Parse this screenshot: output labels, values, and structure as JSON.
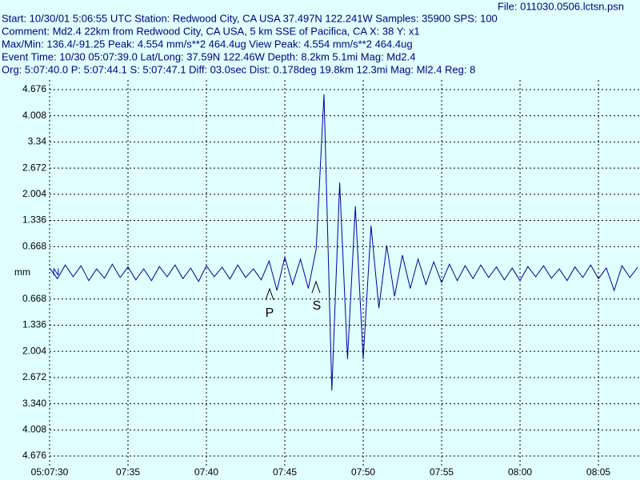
{
  "chart_data": {
    "type": "line",
    "header": [
      "File: 011030.0506.lctsn.psn",
      "Start: 10/30/01  5:06:55 UTC Station: Redwood City, CA USA 37.497N 122.241W Samples: 35900  SPS: 100",
      "Comment: Md2.4 22km from Redwood City, CA USA, 5 km SSE of Pacifica, CA    X: 38 Y: x1",
      "Max/Min: 136.4/-91.25  Peak: 4.554 mm/s**2 464.4ug  View Peak:  4.554 mm/s**2 464.4ug",
      "Event Time: 10/30 05:07:39.0 Lat/Long: 37.59N 122.46W Depth: 8.2km 5.1mi Mag: Md2.4",
      "Org: 5:07:40.0 P: 5:07:44.1  S: 5:07:47.1  Diff: 03.0sec Dist: 0.178deg 19.8km 12.3mi  Mag: Ml2.4 Reg: 8"
    ],
    "y_label": "mm",
    "annotations": [
      "N",
      "P",
      "S"
    ],
    "xlim": [
      18450,
      18487.65
    ],
    "xticks": [
      {
        "value": 18450,
        "label": "05:07:30"
      },
      {
        "value": 18455,
        "label": "07:35"
      },
      {
        "value": 18460,
        "label": "07:40"
      },
      {
        "value": 18465,
        "label": "07:45"
      },
      {
        "value": 18470,
        "label": "07:50"
      },
      {
        "value": 18475,
        "label": "07:55"
      },
      {
        "value": 18480,
        "label": "08:00"
      },
      {
        "value": 18485,
        "label": "08:05"
      }
    ],
    "ylim": [
      -4.92,
      4.92
    ],
    "yticks": [
      4.676,
      4.008,
      3.34,
      2.672,
      2.004,
      1.336,
      0.668,
      {
        "value": -0.668,
        "label": "0.668"
      },
      {
        "value": -1.336,
        "label": "1.336"
      },
      {
        "value": -2.004,
        "label": "2.004"
      },
      {
        "value": -2.672,
        "label": "2.672"
      },
      {
        "value": -3.34,
        "label": "3.340"
      },
      {
        "value": -4.008,
        "label": "4.008"
      },
      {
        "value": -4.676,
        "label": "4.676"
      }
    ],
    "grid": true,
    "series": [
      {
        "color": "#0000a0",
        "x": [
          18450,
          18450.5,
          18451,
          18451.5,
          18452,
          18452.5,
          18453,
          18453.5,
          18454,
          18454.5,
          18455,
          18455.5,
          18456,
          18456.5,
          18457,
          18457.5,
          18458,
          18458.5,
          18459,
          18459.5,
          18460,
          18460.5,
          18461,
          18461.5,
          18462,
          18462.5,
          18463,
          18463.5,
          18464,
          18464.5,
          18465,
          18465.5,
          18466,
          18466.5,
          18467,
          18467.5,
          18468,
          18468.5,
          18469,
          18469.5,
          18470,
          18470.5,
          18471,
          18471.5,
          18472,
          18472.5,
          18473,
          18473.5,
          18474,
          18474.5,
          18475,
          18475.5,
          18476,
          18476.5,
          18477,
          18477.5,
          18478,
          18478.5,
          18479,
          18479.5,
          18480,
          18480.5,
          18481,
          18481.5,
          18482,
          18482.5,
          18483,
          18483.5,
          18484,
          18484.5,
          18485,
          18485.5,
          18486,
          18486.5,
          18487,
          18487.5
        ],
        "values": [
          0.12,
          -0.15,
          0.2,
          -0.1,
          0.18,
          -0.2,
          0.1,
          -0.14,
          0.22,
          -0.12,
          0.15,
          -0.18,
          0.1,
          -0.2,
          0.16,
          -0.1,
          0.2,
          -0.15,
          0.12,
          -0.22,
          0.18,
          -0.1,
          0.14,
          -0.16,
          0.2,
          -0.12,
          0.1,
          -0.18,
          0.3,
          -0.45,
          0.4,
          -0.3,
          0.35,
          -0.4,
          0.6,
          4.554,
          -3.0,
          2.3,
          -2.2,
          1.7,
          -2.2,
          1.2,
          -0.9,
          0.7,
          -0.6,
          0.45,
          -0.4,
          0.35,
          -0.3,
          0.28,
          -0.25,
          0.22,
          -0.2,
          0.18,
          -0.15,
          0.2,
          -0.12,
          0.15,
          -0.18,
          0.12,
          -0.2,
          0.16,
          -0.1,
          0.18,
          -0.14,
          0.1,
          -0.2,
          0.15,
          -0.12,
          0.2,
          -0.15,
          0.12,
          -0.45,
          0.18,
          -0.12,
          0.14
        ]
      }
    ]
  }
}
